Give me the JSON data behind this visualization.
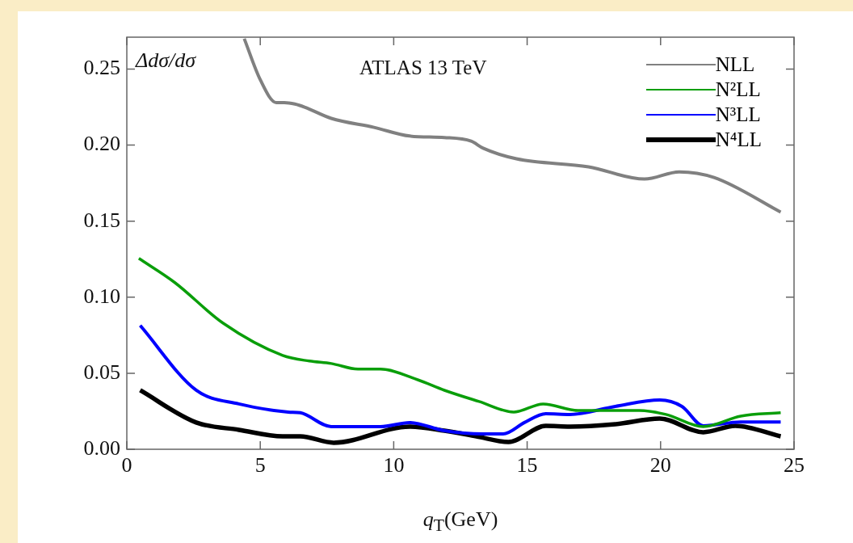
{
  "chart_data": {
    "type": "line",
    "xlabel": "q$_{T}$(GeV)",
    "ylabel": "Δdσ/dσ",
    "annotations": [
      "ATLAS 13 TeV"
    ],
    "xlim": [
      0,
      25
    ],
    "xticks": [
      0,
      5,
      10,
      15,
      20,
      25
    ],
    "ylim": [
      0,
      0.271
    ],
    "yticks": [
      {
        "value": 0,
        "label": "0.00"
      },
      0.05,
      {
        "value": 0.1,
        "label": "0.10"
      },
      0.15,
      {
        "value": 0.2,
        "label": "0.20"
      },
      0.25
    ],
    "legend": "top right",
    "line_style": "solid",
    "marker": "none",
    "series": [
      {
        "name": "NLL",
        "color": "#808080",
        "x": [
          4.4,
          5.0,
          5.6,
          5.9,
          6.3,
          6.66,
          7.66,
          9.26,
          10.6,
          11.9,
          12.9,
          13.35,
          14.6,
          17.3,
          19.4,
          20.7,
          22.0,
          24.5
        ],
        "values": [
          0.27,
          0.243,
          0.228,
          0.228,
          0.227,
          0.225,
          0.2176,
          0.2117,
          0.206,
          0.205,
          0.2026,
          0.198,
          0.191,
          0.1857,
          0.1777,
          0.1824,
          0.1787,
          0.156
        ]
      },
      {
        "name": "N²LL",
        "color": "#0a9e0a",
        "x": [
          0.45,
          1.8,
          3.6,
          5.84,
          6.84,
          7.66,
          8.66,
          9.5,
          10.9,
          11.9,
          13.2,
          14.5,
          15.6,
          16.9,
          19.2,
          20.2,
          21.6,
          23.0,
          24.5
        ],
        "values": [
          0.1255,
          0.1096,
          0.083,
          0.0617,
          0.058,
          0.0564,
          0.0527,
          0.0527,
          0.0457,
          0.0388,
          0.0314,
          0.0245,
          0.0298,
          0.0255,
          0.0255,
          0.0229,
          0.0149,
          0.0218,
          0.024
        ]
      },
      {
        "name": "N³LL",
        "color": "#0000ff",
        "x": [
          0.5,
          2.6,
          4.2,
          6.05,
          6.5,
          7.66,
          9.5,
          10.6,
          11.9,
          13.35,
          14.1,
          14.9,
          15.7,
          16.6,
          18.3,
          19.97,
          20.8,
          21.6,
          23.0,
          24.5
        ],
        "values": [
          0.0814,
          0.0388,
          0.0298,
          0.0245,
          0.024,
          0.0149,
          0.0149,
          0.0176,
          0.0122,
          0.0101,
          0.0101,
          0.0176,
          0.0234,
          0.0229,
          0.0282,
          0.0324,
          0.0282,
          0.0154,
          0.018,
          0.018
        ]
      },
      {
        "name": "N⁴LL",
        "color": "#000000",
        "x": [
          0.5,
          2.6,
          4.2,
          5.84,
          6.5,
          7.75,
          10.6,
          11.9,
          13.1,
          14.3,
          15.7,
          16.6,
          18.3,
          19.97,
          21.6,
          22.8,
          24.5
        ],
        "values": [
          0.0388,
          0.0176,
          0.0128,
          0.0085,
          0.0085,
          0.0043,
          0.0149,
          0.0122,
          0.0085,
          0.0048,
          0.0154,
          0.0149,
          0.0165,
          0.0202,
          0.0112,
          0.0154,
          0.0085
        ]
      }
    ]
  }
}
